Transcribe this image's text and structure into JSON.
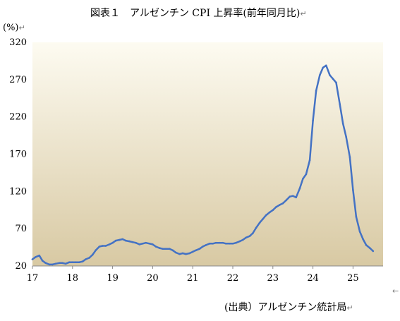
{
  "chart_data": {
    "type": "line",
    "title": "図表１　アルゼンチン CPI 上昇率(前年同月比)",
    "ylabel": "(%)",
    "source": "(出典）アルゼンチン統計局",
    "paragraph_mark": "↵",
    "side_mark": "←",
    "ylim": [
      20,
      320
    ],
    "xlim": [
      17,
      25.75
    ],
    "yticks": [
      "20",
      "70",
      "120",
      "170",
      "220",
      "270",
      "320"
    ],
    "xticks": [
      "17",
      "18",
      "19",
      "20",
      "21",
      "22",
      "23",
      "24",
      "25"
    ],
    "colors": {
      "line": "#4472C4",
      "bg_top": "#fdfbf1",
      "bg_bottom": "#d8c9a3",
      "axis": "#888888"
    },
    "series": [
      {
        "x": [
          17.0,
          17.08,
          17.17,
          17.25,
          17.33,
          17.42,
          17.5,
          17.58,
          17.67,
          17.75,
          17.83,
          17.92,
          18.0,
          18.08,
          18.17,
          18.25,
          18.33,
          18.42,
          18.5,
          18.58,
          18.67,
          18.75,
          18.83,
          18.92,
          19.0,
          19.08,
          19.17,
          19.25,
          19.33,
          19.42,
          19.5,
          19.58,
          19.67,
          19.75,
          19.83,
          19.92,
          20.0,
          20.08,
          20.17,
          20.25,
          20.33,
          20.42,
          20.5,
          20.58,
          20.67,
          20.75,
          20.83,
          20.92,
          21.0,
          21.08,
          21.17,
          21.25,
          21.33,
          21.42,
          21.5,
          21.58,
          21.67,
          21.75,
          21.83,
          21.92,
          22.0,
          22.08,
          22.17,
          22.25,
          22.33,
          22.42,
          22.5,
          22.58,
          22.67,
          22.75,
          22.83,
          22.92,
          23.0,
          23.08,
          23.17,
          23.25,
          23.33,
          23.42,
          23.5,
          23.58,
          23.67,
          23.75,
          23.83,
          23.92,
          24.0,
          24.08,
          24.17,
          24.25,
          24.33,
          24.42,
          24.5,
          24.58,
          24.67,
          24.75,
          24.83,
          24.92,
          25.0,
          25.08,
          25.17,
          25.25,
          25.33,
          25.42,
          25.5
        ],
        "values": [
          29,
          32,
          34,
          27,
          24,
          22,
          22,
          23,
          24,
          24,
          23,
          25,
          25,
          25,
          25,
          26,
          29,
          31,
          35,
          41,
          46,
          47,
          47,
          49,
          51,
          54,
          55,
          56,
          54,
          53,
          52,
          51,
          49,
          50,
          51,
          50,
          49,
          46,
          44,
          43,
          43,
          43,
          41,
          38,
          36,
          37,
          36,
          37,
          39,
          41,
          43,
          46,
          48,
          50,
          50,
          51,
          51,
          51,
          50,
          50,
          50,
          51,
          53,
          55,
          58,
          60,
          64,
          71,
          78,
          83,
          88,
          92,
          95,
          99,
          102,
          104,
          108,
          113,
          114,
          112,
          124,
          137,
          143,
          162,
          215,
          255,
          276,
          286,
          289,
          276,
          271,
          266,
          237,
          211,
          193,
          166,
          122,
          86,
          66,
          56,
          48,
          44,
          40
        ]
      }
    ]
  }
}
